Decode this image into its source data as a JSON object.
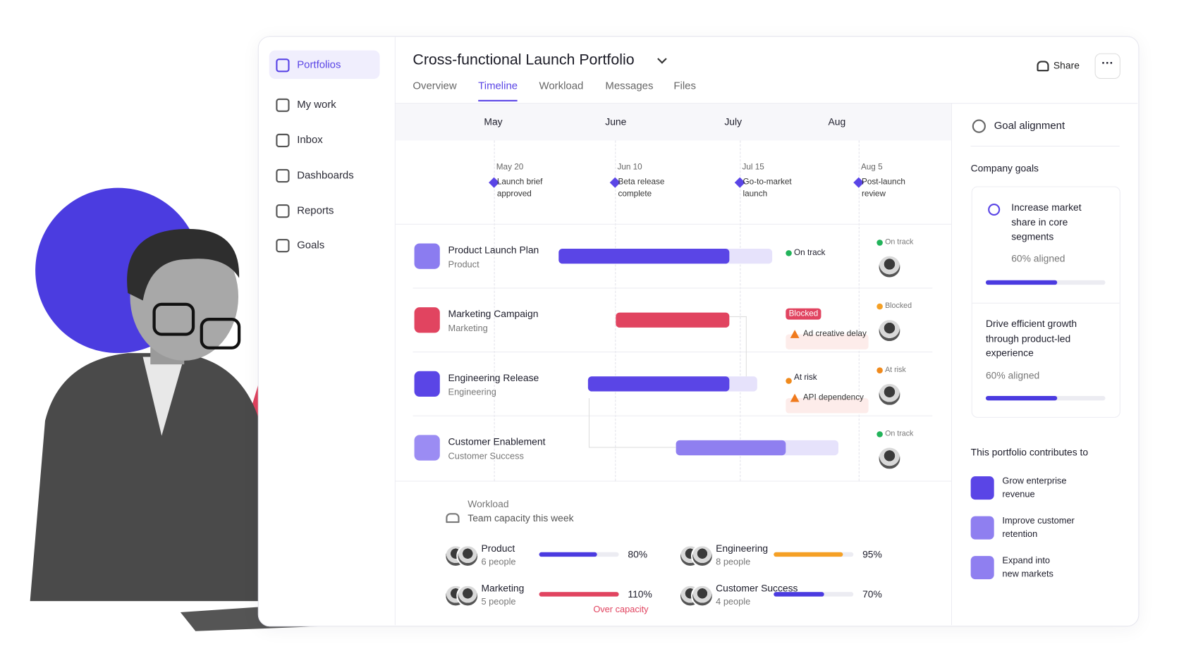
{
  "sidebar": {
    "nav": [
      "Portfolios",
      "My work",
      "Inbox",
      "Dashboards",
      "Reports",
      "Goals"
    ],
    "active": 0
  },
  "header": {
    "title": "Cross-functional Launch Portfolio",
    "tabs": [
      "Overview",
      "Timeline",
      "Workload",
      "Messages",
      "Files"
    ],
    "active_tab": 1,
    "share": "Share"
  },
  "timeline": {
    "months": [
      "May",
      "June",
      "July",
      "Aug"
    ],
    "milestones": [
      {
        "date": "May 20",
        "lines": [
          "Launch brief",
          "approved"
        ]
      },
      {
        "date": "Jun 10",
        "lines": [
          "Beta release",
          "complete"
        ]
      },
      {
        "date": "Jul 15",
        "lines": [
          "Go-to-market",
          "launch"
        ]
      },
      {
        "date": "Aug 5",
        "lines": [
          "Post-launch",
          "review"
        ]
      }
    ]
  },
  "projects": [
    {
      "name": "Product Launch Plan",
      "team": "Product",
      "status": "On track",
      "side_status": "On track"
    },
    {
      "name": "Marketing Campaign",
      "team": "Marketing",
      "status": "Blocked",
      "note": "Ad creative delay",
      "side_status": "Blocked"
    },
    {
      "name": "Engineering Release",
      "team": "Engineering",
      "status": "At risk",
      "note": "API dependency",
      "side_status": "At risk"
    },
    {
      "name": "Customer Enablement",
      "team": "Customer Success",
      "side_status": "On track"
    }
  ],
  "workload": {
    "title": "Workload",
    "subtitle": "Team capacity this week",
    "teams": [
      {
        "name": "Product",
        "people": "6 people",
        "capacity": {
          "value": 80,
          "label": "80%"
        },
        "color": "#4b3be0"
      },
      {
        "name": "Engineering",
        "people": "8 people",
        "capacity": {
          "value": 95,
          "label": "95%"
        },
        "color": "#f5a025"
      },
      {
        "name": "Marketing",
        "people": "5 people",
        "capacity": {
          "value": 110,
          "label": "110%"
        },
        "color": "#e14460",
        "note": "Over capacity"
      },
      {
        "name": "Customer Success",
        "people": "4 people",
        "capacity": {
          "value": 70,
          "label": "70%"
        },
        "color": "#4b3be0"
      }
    ]
  },
  "goals_panel": {
    "title": "Goal alignment",
    "company_goals_title": "Company goals",
    "goals": [
      {
        "lines": [
          "Increase market",
          "share in core",
          "segments"
        ],
        "aligned": {
          "value": 60,
          "label": "60% aligned"
        }
      },
      {
        "lines": [
          "Drive efficient growth",
          "through product-led",
          "experience"
        ],
        "aligned": {
          "value": 60,
          "label": "60% aligned"
        }
      }
    ],
    "contributes_title": "This portfolio contributes to",
    "contributions": [
      [
        "Grow enterprise",
        "revenue"
      ],
      [
        "Improve customer",
        "retention"
      ],
      [
        "Expand into",
        "new markets"
      ]
    ]
  }
}
